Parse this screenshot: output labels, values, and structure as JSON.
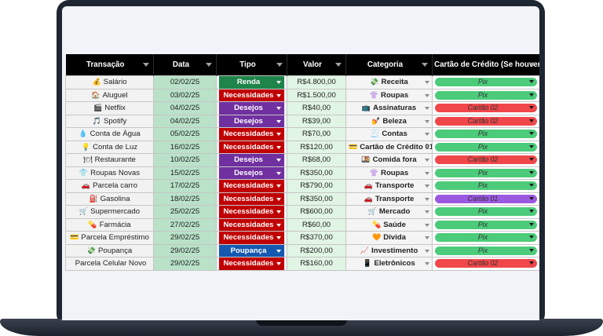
{
  "colors": {
    "renda": "#1e8449",
    "necessidades": "#c00000",
    "desejos": "#7030a0",
    "poupanca": "#1558b0",
    "pix": "#4ccb7a",
    "cartao_02": "#f0474a",
    "cartao_01": "#9b59e0"
  },
  "headers": {
    "transacao": "Transação",
    "data": "Data",
    "tipo": "Tipo",
    "valor": "Valor",
    "categoria": "Categoria",
    "cartao": "Cartão de Crédito (Se houver)"
  },
  "rows": [
    {
      "icon": "money-bag-icon",
      "icon_glyph": "💰",
      "transacao": "Salário",
      "data": "02/02/25",
      "tipo": "Renda",
      "tipo_color": "#1e8449",
      "valor": "R$4.800,00",
      "cat_icon": "cash-icon",
      "cat_glyph": "💸",
      "categoria": "Receita",
      "cartao": "Pix",
      "cartao_color": "#4ccb7a"
    },
    {
      "icon": "house-icon",
      "icon_glyph": "🏠",
      "transacao": "Aluguel",
      "data": "03/02/25",
      "tipo": "Necessidades",
      "tipo_color": "#c00000",
      "valor": "R$1.500,00",
      "cat_icon": "shirt-icon",
      "cat_glyph": "👚",
      "categoria": "Roupas",
      "cartao": "Pix",
      "cartao_color": "#4ccb7a"
    },
    {
      "icon": "clapper-icon",
      "icon_glyph": "🎬",
      "transacao": "Netflix",
      "data": "04/02/25",
      "tipo": "Desejos",
      "tipo_color": "#7030a0",
      "valor": "R$40,00",
      "cat_icon": "tv-icon",
      "cat_glyph": "📺",
      "categoria": "Assinaturas",
      "cartao": "Cartão 02",
      "cartao_color": "#f0474a"
    },
    {
      "icon": "music-icon",
      "icon_glyph": "🎵",
      "transacao": "Spotify",
      "data": "04/02/25",
      "tipo": "Desejos",
      "tipo_color": "#7030a0",
      "valor": "R$39,00",
      "cat_icon": "lipstick-icon",
      "cat_glyph": "💅",
      "categoria": "Beleza",
      "cartao": "Cartão 02",
      "cartao_color": "#f0474a"
    },
    {
      "icon": "water-drop-icon",
      "icon_glyph": "💧",
      "transacao": "Conta de Água",
      "data": "05/02/25",
      "tipo": "Necessidades",
      "tipo_color": "#c00000",
      "valor": "R$70,00",
      "cat_icon": "receipt-icon",
      "cat_glyph": "🧾",
      "categoria": "Contas",
      "cartao": "Pix",
      "cartao_color": "#4ccb7a"
    },
    {
      "icon": "light-bulb-icon",
      "icon_glyph": "💡",
      "transacao": "Conta de Luz",
      "data": "16/02/25",
      "tipo": "Necessidades",
      "tipo_color": "#c00000",
      "valor": "R$120,00",
      "cat_icon": "card-icon",
      "cat_glyph": "💳",
      "categoria": "Cartão de Crédito 01",
      "cartao": "Pix",
      "cartao_color": "#4ccb7a"
    },
    {
      "icon": "plate-icon",
      "icon_glyph": "🍽",
      "transacao": "Restaurante",
      "data": "10/02/25",
      "tipo": "Desejos",
      "tipo_color": "#7030a0",
      "valor": "R$68,00",
      "cat_icon": "food-icon",
      "cat_glyph": "🍱",
      "categoria": "Comida fora",
      "cartao": "Cartão 02",
      "cartao_color": "#f0474a"
    },
    {
      "icon": "tshirt-icon",
      "icon_glyph": "👕",
      "transacao": "Roupas Novas",
      "data": "15/02/25",
      "tipo": "Desejos",
      "tipo_color": "#7030a0",
      "valor": "R$350,00",
      "cat_icon": "shirt-icon",
      "cat_glyph": "👚",
      "categoria": "Roupas",
      "cartao": "Pix",
      "cartao_color": "#4ccb7a"
    },
    {
      "icon": "car-icon",
      "icon_glyph": "🚗",
      "transacao": "Parcela carro",
      "data": "17/02/25",
      "tipo": "Necessidades",
      "tipo_color": "#c00000",
      "valor": "R$790,00",
      "cat_icon": "car-icon",
      "cat_glyph": "🚗",
      "categoria": "Transporte",
      "cartao": "Pix",
      "cartao_color": "#4ccb7a"
    },
    {
      "icon": "fuel-icon",
      "icon_glyph": "⛽",
      "transacao": "Gasolina",
      "data": "18/02/25",
      "tipo": "Necessidades",
      "tipo_color": "#c00000",
      "valor": "R$350,00",
      "cat_icon": "car-icon",
      "cat_glyph": "🚗",
      "categoria": "Transporte",
      "cartao": "Cartão 01",
      "cartao_color": "#9b59e0"
    },
    {
      "icon": "cart-icon",
      "icon_glyph": "🛒",
      "transacao": "Supermercado",
      "data": "25/02/25",
      "tipo": "Necessidades",
      "tipo_color": "#c00000",
      "valor": "R$600,00",
      "cat_icon": "cart-icon",
      "cat_glyph": "🛒",
      "categoria": "Mercado",
      "cartao": "Pix",
      "cartao_color": "#4ccb7a"
    },
    {
      "icon": "pill-icon",
      "icon_glyph": "💊",
      "transacao": "Farmácia",
      "data": "27/02/25",
      "tipo": "Necessidades",
      "tipo_color": "#c00000",
      "valor": "R$60,00",
      "cat_icon": "pill-icon",
      "cat_glyph": "💊",
      "categoria": "Saúde",
      "cartao": "Pix",
      "cartao_color": "#4ccb7a"
    },
    {
      "icon": "credit-card-icon",
      "icon_glyph": "💳",
      "transacao": "Parcela Empréstimo",
      "data": "29/02/25",
      "tipo": "Necessidades",
      "tipo_color": "#c00000",
      "valor": "R$370,00",
      "cat_icon": "heart-icon",
      "cat_glyph": "🧡",
      "categoria": "Dívida",
      "cartao": "Pix",
      "cartao_color": "#4ccb7a"
    },
    {
      "icon": "cash-icon",
      "icon_glyph": "💸",
      "transacao": "Poupança",
      "data": "29/02/25",
      "tipo": "Poupança",
      "tipo_color": "#1558b0",
      "valor": "R$200,00",
      "cat_icon": "chart-icon",
      "cat_glyph": "📈",
      "categoria": "Investimento",
      "cartao": "Pix",
      "cartao_color": "#4ccb7a"
    },
    {
      "icon": "",
      "icon_glyph": "",
      "transacao": "Parcela Celular Novo",
      "data": "29/02/25",
      "tipo": "Necessidades",
      "tipo_color": "#c00000",
      "valor": "R$160,00",
      "cat_icon": "phone-icon",
      "cat_glyph": "📱",
      "categoria": "Eletrônicos",
      "cartao": "Cartão 02",
      "cartao_color": "#f0474a"
    }
  ]
}
